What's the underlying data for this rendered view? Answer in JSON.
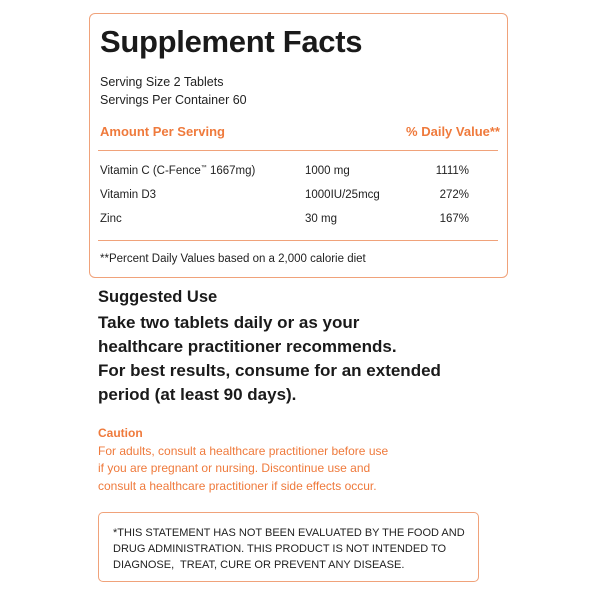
{
  "facts": {
    "title": "Supplement Facts",
    "serving_size": "Serving Size 2 Tablets",
    "servings_per_container": "Servings Per Container 60",
    "header_amount": "Amount Per Serving",
    "header_dv": "% Daily Value**",
    "rows": [
      {
        "name": "Vitamin C (C-Fence",
        "tm": "™",
        "name_rest": " 1667mg)",
        "amount": "1000 mg",
        "dv": "1111%"
      },
      {
        "name": "Vitamin D3",
        "amount": "1000IU/25mcg",
        "dv": "272%"
      },
      {
        "name": "Zinc",
        "amount": "30 mg",
        "dv": "167%"
      }
    ],
    "footnote": "**Percent Daily Values based on a 2,000 calorie diet"
  },
  "suggested": {
    "heading": "Suggested Use",
    "lines": [
      "Take two tablets daily or as your",
      "healthcare practitioner recommends.",
      "For best results, consume for an extended",
      "period (at least 90 days)."
    ]
  },
  "caution": {
    "heading": "Caution",
    "lines": [
      "For adults, consult a healthcare practitioner before use",
      "if you are pregnant or nursing. Discontinue use and",
      "consult a healthcare practitioner if side effects occur."
    ]
  },
  "disclaimer": {
    "lines": [
      "*THIS STATEMENT HAS NOT BEEN EVALUATED BY THE FOOD AND",
      "DRUG ADMINISTRATION. THIS PRODUCT IS NOT INTENDED TO",
      "DIAGNOSE,  TREAT, CURE OR PREVENT ANY DISEASE."
    ]
  },
  "colors": {
    "accent": "#ef7a3c",
    "border": "#f0a27a"
  }
}
